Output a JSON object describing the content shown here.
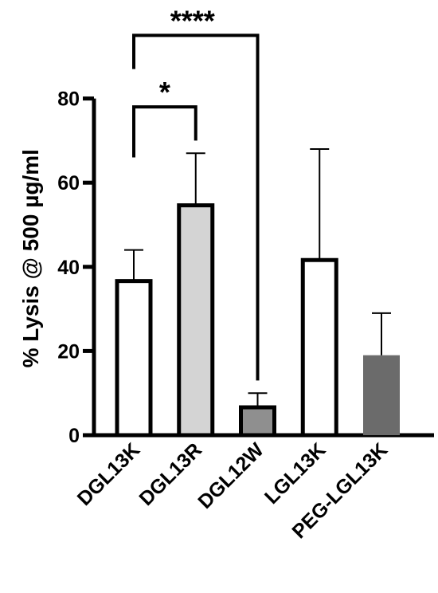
{
  "chart_data": {
    "type": "bar",
    "title": "",
    "xlabel": "",
    "ylabel": "% Lysis @ 500 µg/ml",
    "ylim": [
      0,
      80
    ],
    "yticks": [
      0,
      20,
      40,
      60,
      80
    ],
    "grid": false,
    "categories": [
      "DGL13K",
      "DGL13R",
      "DGL12W",
      "LGL13K",
      "PEG-LGL13K"
    ],
    "values": [
      37,
      55,
      7,
      42,
      19
    ],
    "errors": [
      7,
      12,
      3,
      26,
      10
    ],
    "bar_colors": [
      "#ffffff",
      "#d4d4d4",
      "#8f8f8f",
      "#ffffff",
      "#6b6b6b"
    ],
    "bar_outlined": [
      true,
      true,
      true,
      true,
      false
    ],
    "annotations": [
      {
        "label": "*",
        "from": "DGL13K",
        "to": "DGL13R",
        "level": 78
      },
      {
        "label": "****",
        "from": "DGL13K",
        "to": "DGL12W",
        "level": 95
      }
    ]
  }
}
